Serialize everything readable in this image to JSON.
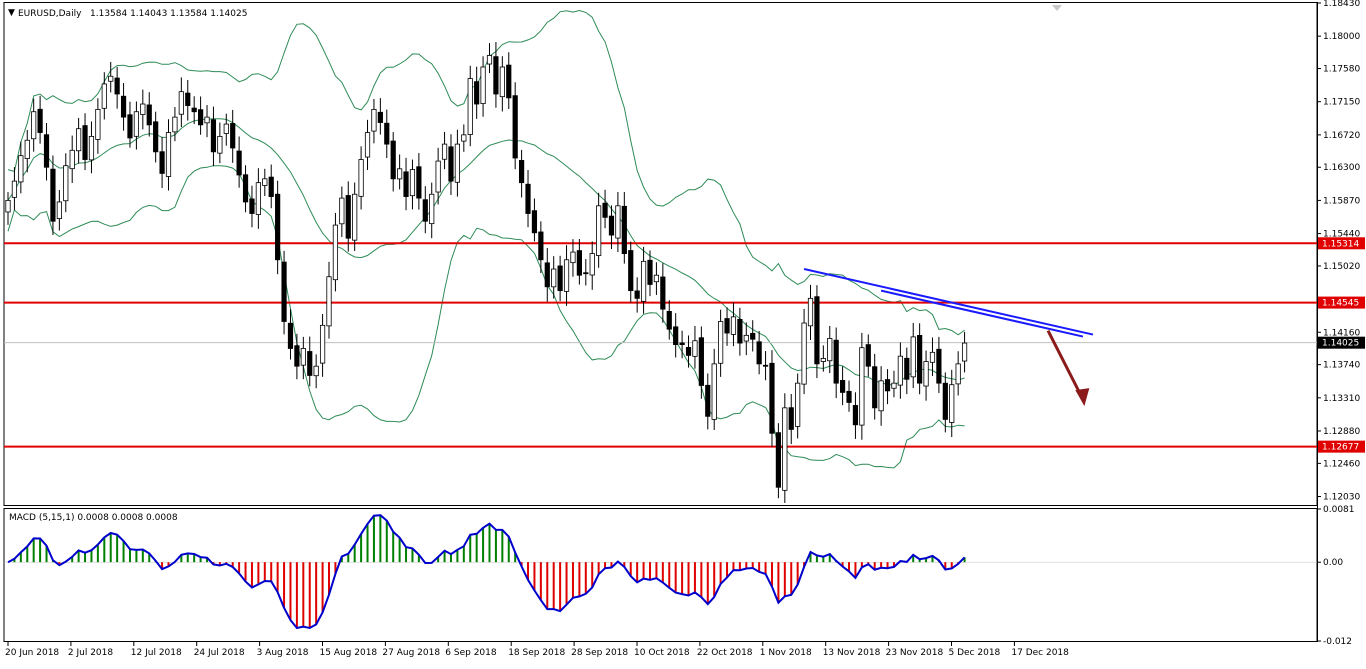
{
  "header": {
    "arrow": "▼",
    "symbol": "EURUSD,Daily",
    "ohlc": "1.13584 1.14043 1.13584 1.14025"
  },
  "macd_header": "MACD (5,15,1) 0.0008 0.0008 0.0008",
  "colors": {
    "bull_candle": "#ffffff",
    "bear_candle": "#000000",
    "bollinger": "#2e8b57",
    "support_resistance": "#e00000",
    "trendline": "#1a1aff",
    "forecast_arrow": "#8b1a1a",
    "macd_line": "#0000cd",
    "macd_hist_positive": "#008000",
    "macd_hist_negative": "#e00000"
  },
  "chart_data": [
    {
      "type": "candlestick",
      "symbol": "EURUSD",
      "timeframe": "Daily",
      "ylim": [
        1.1192,
        1.1843
      ],
      "y_ticks": [
        "1.18430",
        "1.18000",
        "1.17580",
        "1.17150",
        "1.16720",
        "1.16300",
        "1.15870",
        "1.15440",
        "1.15020",
        "1.14160",
        "1.13740",
        "1.13310",
        "1.12880",
        "1.12460",
        "1.12030"
      ],
      "x_ticks": [
        "20 Jun 2018",
        "2 Jul 2018",
        "12 Jul 2018",
        "24 Jul 2018",
        "3 Aug 2018",
        "15 Aug 2018",
        "27 Aug 2018",
        "6 Sep 2018",
        "18 Sep 2018",
        "28 Sep 2018",
        "10 Oct 2018",
        "22 Oct 2018",
        "1 Nov 2018",
        "13 Nov 2018",
        "23 Nov 2018",
        "5 Dec 2018",
        "17 Dec 2018"
      ],
      "current_price": "1.14025",
      "horizontal_levels": [
        {
          "value": 1.15314,
          "label": "1.15314"
        },
        {
          "value": 1.14545,
          "label": "1.14545"
        },
        {
          "value": 1.12677,
          "label": "1.12677"
        }
      ],
      "closes": [
        1.1587,
        1.1612,
        1.1645,
        1.1665,
        1.1702,
        1.1675,
        1.163,
        1.156,
        1.1585,
        1.1632,
        1.1652,
        1.168,
        1.164,
        1.167,
        1.1705,
        1.1738,
        1.1748,
        1.1725,
        1.1695,
        1.1668,
        1.1702,
        1.1712,
        1.1685,
        1.165,
        1.1622,
        1.1675,
        1.1695,
        1.1728,
        1.171,
        1.1702,
        1.1685,
        1.1695,
        1.165,
        1.167,
        1.1686,
        1.1655,
        1.162,
        1.1585,
        1.157,
        1.161,
        1.1615,
        1.1592,
        1.151,
        1.143,
        1.1395,
        1.1372,
        1.1395,
        1.136,
        1.1372,
        1.1425,
        1.1488,
        1.1555,
        1.159,
        1.1538,
        1.1595,
        1.164,
        1.1675,
        1.1705,
        1.1688,
        1.166,
        1.1615,
        1.1628,
        1.1592,
        1.1627,
        1.159,
        1.156,
        1.1595,
        1.1638,
        1.166,
        1.1612,
        1.166,
        1.1672,
        1.1745,
        1.1712,
        1.176,
        1.1775,
        1.1725,
        1.176,
        1.172,
        1.1642,
        1.161,
        1.157,
        1.1545,
        1.151,
        1.1475,
        1.1498,
        1.147,
        1.151,
        1.152,
        1.149,
        1.1493,
        1.1518,
        1.158,
        1.1565,
        1.1542,
        1.158,
        1.1518,
        1.147,
        1.146,
        1.1508,
        1.1478,
        1.149,
        1.1446,
        1.142,
        1.14,
        1.14,
        1.1386,
        1.1405,
        1.1347,
        1.1307,
        1.1375,
        1.143,
        1.1415,
        1.1436,
        1.1402,
        1.1412,
        1.1407,
        1.1375,
        1.1372,
        1.1285,
        1.1215,
        1.1318,
        1.129,
        1.135,
        1.1428,
        1.146,
        1.1375,
        1.1382,
        1.1408,
        1.135,
        1.1338,
        1.1325,
        1.1296,
        1.1396,
        1.1372,
        1.1318,
        1.1353,
        1.134,
        1.135,
        1.1385,
        1.1355,
        1.141,
        1.135,
        1.1378,
        1.139,
        1.135,
        1.1303,
        1.1348,
        1.1375,
        1.1402
      ],
      "bollinger": {
        "period": 20
      }
    },
    {
      "type": "macd",
      "params": "(5,15,1)",
      "ylim": [
        -0.012,
        0.0081
      ],
      "y_ticks": [
        "0.0081",
        "0.00",
        "-0.012"
      ],
      "main": 0.0008,
      "signal": 0.0008,
      "histogram": 0.0008
    }
  ]
}
